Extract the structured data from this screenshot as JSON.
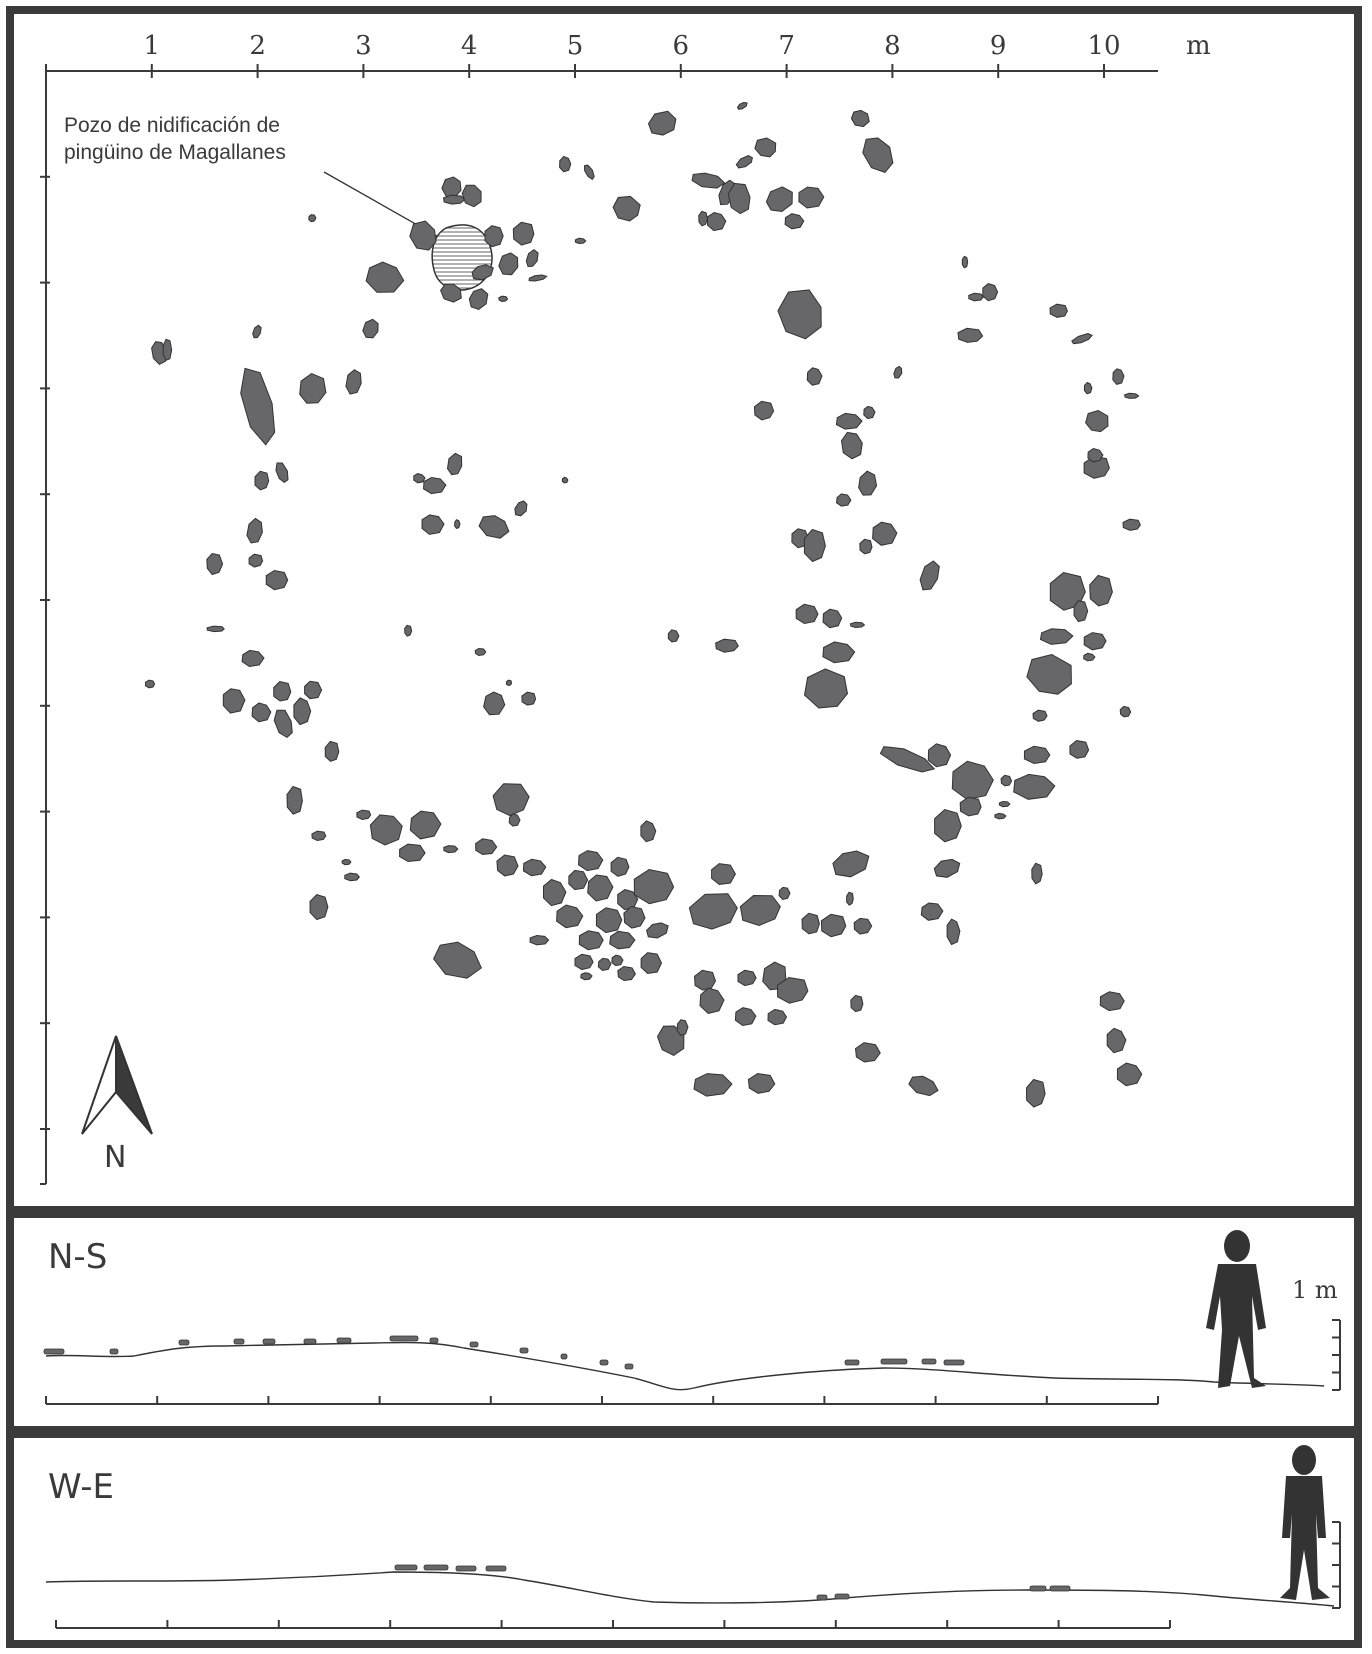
{
  "plan": {
    "scale_labels": [
      "1",
      "2",
      "3",
      "4",
      "5",
      "6",
      "7",
      "8",
      "9",
      "10"
    ],
    "scale_unit": "m",
    "callout": {
      "line1": "Pozo de nidificación de",
      "line2": "pingüino de Magallanes"
    },
    "north_label": "N",
    "rock_fill": "#676769"
  },
  "section_ns": {
    "label": "N-S",
    "scale_label": "1 m"
  },
  "section_we": {
    "label": "W-E"
  },
  "colors": {
    "frame": "#3b3b3b",
    "ink": "#3a3a3a",
    "rock": "#676769"
  }
}
